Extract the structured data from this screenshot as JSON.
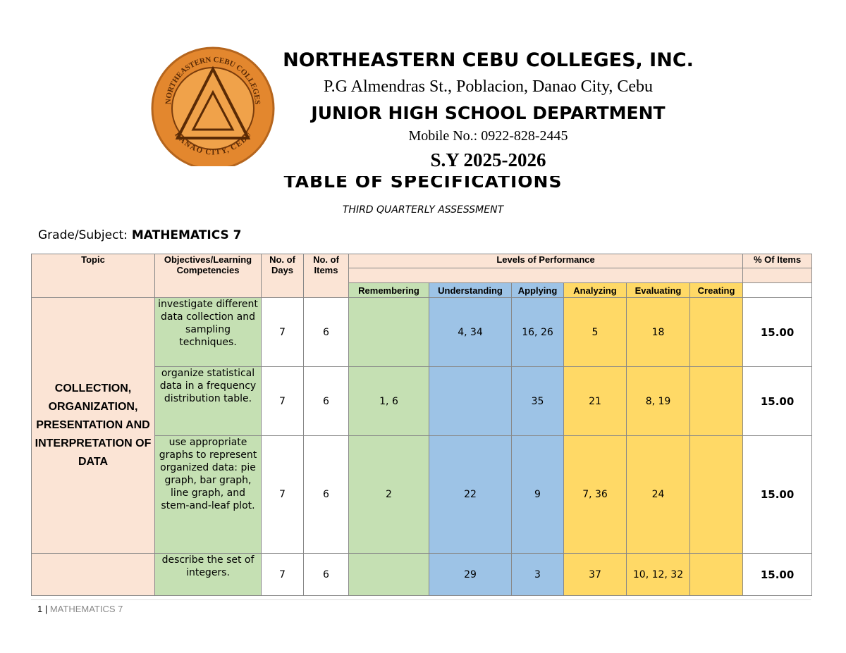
{
  "header": {
    "logo_top": "NORTHEASTERN CEBU COLLEGES",
    "logo_bottom": "DANAO CITY, CEBU",
    "school": "NORTHEASTERN CEBU COLLEGES, INC.",
    "address": "P.G Almendras St., Poblacion, Danao City, Cebu",
    "department": "JUNIOR HIGH SCHOOL DEPARTMENT",
    "mobile": "Mobile No.: 0922-828-2445",
    "school_year": "S.Y 2025-2026"
  },
  "title": "TABLE OF SPECIFICATIONS",
  "subtitle": "THIRD QUARTERLY ASSESSMENT",
  "grade_label": "Grade/Subject:",
  "grade_value": "MATHEMATICS 7",
  "table": {
    "headers": {
      "topic": "Topic",
      "objectives": "Objectives/Learning Competencies",
      "days": "No. of Days",
      "items": "No. of Items",
      "levels": "Levels of Performance",
      "percent": "% Of Items",
      "level_names": [
        "Remembering",
        "Understanding",
        "Applying",
        "Analyzing",
        "Evaluating",
        "Creating"
      ]
    },
    "topic": "COLLECTION, ORGANIZATION, PRESENTATION AND INTERPRETATION OF DATA",
    "rows": [
      {
        "objective": "investigate different data collection and sampling techniques.",
        "days": 7,
        "items": 6,
        "levels": {
          "understanding": "4, 34",
          "applying": "16, 26",
          "analyzing": "5",
          "evaluating": "18"
        },
        "percent": "15.00"
      },
      {
        "objective": "organize statistical data in a frequency distribution table.",
        "days": 7,
        "items": 6,
        "levels": {
          "remembering": "1, 6",
          "applying": "35",
          "analyzing": "21",
          "evaluating": "8, 19"
        },
        "percent": "15.00"
      },
      {
        "objective": "use appropriate graphs to represent organized data: pie graph, bar graph, line graph, and stem-and-leaf plot.",
        "days": 7,
        "items": 6,
        "levels": {
          "remembering": "2",
          "understanding": "22",
          "applying": "9",
          "analyzing": "7, 36",
          "evaluating": "24"
        },
        "percent": "15.00"
      },
      {
        "objective": "describe the set of integers.",
        "days": 7,
        "items": 6,
        "levels": {
          "understanding": "29",
          "applying": "3",
          "analyzing": "37",
          "evaluating": "10, 12, 32"
        },
        "percent": "15.00"
      }
    ]
  },
  "footer": {
    "page": "1",
    "text": "MATHEMATICS 7"
  }
}
